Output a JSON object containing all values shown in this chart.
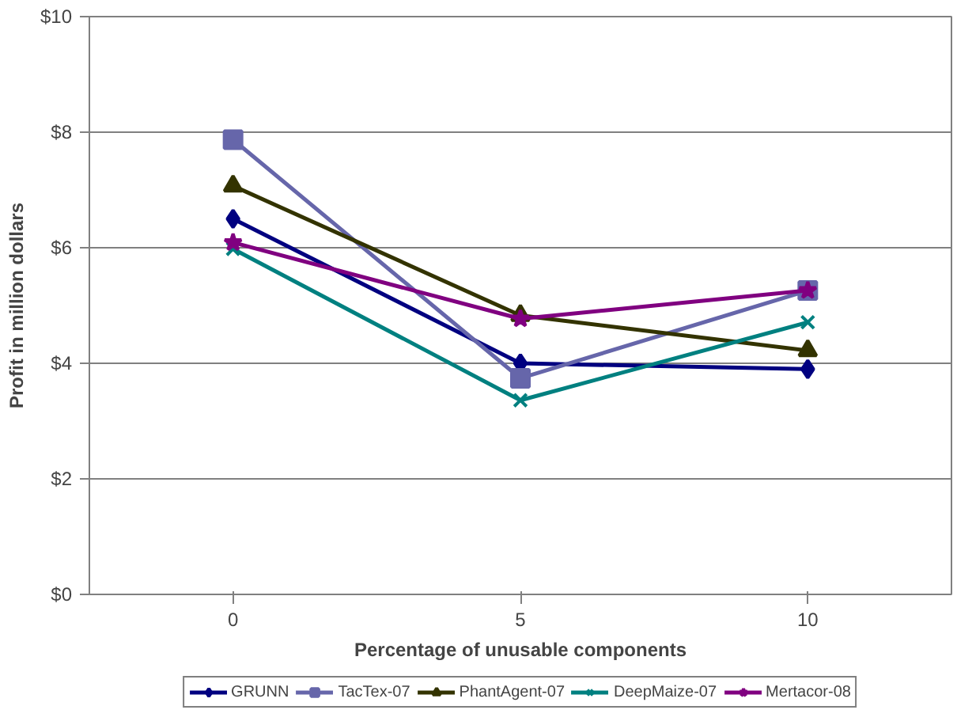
{
  "chart_data": {
    "type": "line",
    "xlabel": "Percentage of unusable components",
    "ylabel": "Profit in million dollars",
    "categories": [
      "0",
      "5",
      "10"
    ],
    "ylim": [
      0,
      10
    ],
    "yticks": [
      {
        "value": 0,
        "label": "$0"
      },
      {
        "value": 2,
        "label": "$2"
      },
      {
        "value": 4,
        "label": "$4"
      },
      {
        "value": 6,
        "label": "$6"
      },
      {
        "value": 8,
        "label": "$8"
      },
      {
        "value": 10,
        "label": "$10"
      }
    ],
    "grid": "y",
    "legend": "bottom",
    "line_style": "solid",
    "series": [
      {
        "name": "GRUNN",
        "color": "#000080",
        "marker": "diamond",
        "values": [
          6.5,
          4.0,
          3.9
        ]
      },
      {
        "name": "TacTex-07",
        "color": "#6666aa",
        "marker": "square",
        "values": [
          7.87,
          3.74,
          5.26
        ]
      },
      {
        "name": "PhantAgent-07",
        "color": "#333300",
        "marker": "triangle",
        "values": [
          7.07,
          4.83,
          4.22
        ]
      },
      {
        "name": "DeepMaize-07",
        "color": "#008080",
        "marker": "cross",
        "values": [
          5.98,
          3.36,
          4.71
        ]
      },
      {
        "name": "Mertacor-08",
        "color": "#800080",
        "marker": "star",
        "values": [
          6.09,
          4.77,
          5.26
        ]
      }
    ]
  }
}
